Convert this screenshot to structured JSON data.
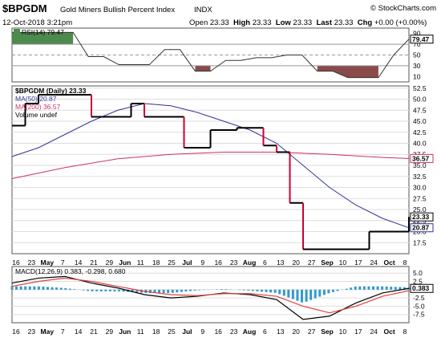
{
  "header": {
    "symbol": "$BPGDM",
    "name": "Gold Miners Bullish Percent Index",
    "exchange": "INDX",
    "brand": "© StockCharts.com",
    "date": "12-Oct-2018 3:21pm",
    "open_label": "Open",
    "open": "23.33",
    "high_label": "High",
    "high": "23.33",
    "low_label": "Low",
    "low": "23.33",
    "last_label": "Last",
    "last": "23.33",
    "chg_label": "Chg",
    "chg": "+0.00 (+0.00%)"
  },
  "colors": {
    "price": "#000000",
    "price_down": "#cc0033",
    "ma50": "#333399",
    "ma200": "#cc3366",
    "rsi_over": "#4d8a4d",
    "rsi_under": "#8b4a4a",
    "macd": "#000000",
    "signal": "#e04040",
    "hist": "#3399cc"
  },
  "chart_data": [
    {
      "type": "line",
      "panel": "rsi",
      "legend": "RSI(14) 79.47",
      "ylim": [
        0,
        100
      ],
      "yticks": [
        "90",
        "70",
        "50",
        "30",
        "10"
      ],
      "last_value_label": "79.47",
      "overbought": 70,
      "oversold": 30,
      "x": [
        0,
        1,
        2,
        3,
        4,
        5,
        6,
        7,
        8,
        9,
        10,
        11,
        12,
        13,
        14,
        15,
        16,
        17,
        18,
        19,
        20,
        21,
        22,
        23,
        24,
        25,
        26
      ],
      "values": [
        92,
        92,
        92,
        92,
        92,
        47,
        47,
        32,
        32,
        32,
        60,
        60,
        20,
        20,
        40,
        40,
        45,
        45,
        50,
        50,
        20,
        20,
        8,
        8,
        8,
        50,
        79.47
      ]
    },
    {
      "type": "line",
      "panel": "price",
      "legend_main": "$BPGDM (Daily) 23.33",
      "legend_ma50": "MA(50) 20.87",
      "legend_ma200": "MA(200) 36.57",
      "legend_vol": "Volume undef",
      "ylim": [
        15,
        53
      ],
      "yticks": [
        "52.5",
        "50.0",
        "47.5",
        "45.0",
        "42.5",
        "40.0",
        "37.5",
        "35.0",
        "32.5",
        "30.0",
        "27.5",
        "25.0",
        "22.5",
        "20.0",
        "17.5"
      ],
      "last_price_label": "23.33",
      "ma50_label": "20.87",
      "ma200_label": "36.57",
      "xlabels": [
        "16",
        "23",
        "May",
        "7",
        "14",
        "21",
        "29",
        "Jun",
        "11",
        "18",
        "25",
        "Jul",
        "9",
        "16",
        "23",
        "Aug",
        "6",
        "13",
        "20",
        "27",
        "Sep",
        "10",
        "17",
        "24",
        "Oct",
        "8"
      ],
      "series": [
        {
          "name": "$BPGDM",
          "x": [
            0,
            1,
            2,
            3,
            4,
            5,
            6,
            7,
            8,
            9,
            10,
            11,
            12,
            13,
            14,
            15,
            16,
            17,
            18,
            19,
            20,
            21,
            22,
            23,
            24,
            25,
            26,
            27,
            28,
            29,
            30
          ],
          "values": [
            44,
            49,
            51,
            51,
            51,
            51,
            46,
            46,
            46,
            49,
            46,
            46,
            46,
            39,
            39,
            43,
            43,
            43.5,
            43.5,
            39.5,
            38,
            26.5,
            16,
            16,
            16,
            16,
            16,
            20,
            20,
            20,
            23.33
          ]
        },
        {
          "name": "MA(50)",
          "x": [
            0,
            2,
            4,
            6,
            8,
            10,
            12,
            14,
            16,
            18,
            20,
            22,
            24,
            26,
            28,
            30
          ],
          "values": [
            37,
            39,
            42,
            45,
            47.5,
            49,
            48.5,
            47,
            45,
            43,
            40,
            35,
            30,
            26,
            23,
            20.87
          ]
        },
        {
          "name": "MA(200)",
          "x": [
            0,
            4,
            8,
            12,
            16,
            20,
            24,
            28,
            30
          ],
          "values": [
            32,
            34.5,
            36.5,
            37.5,
            38,
            38,
            37.5,
            36.8,
            36.57
          ]
        }
      ]
    },
    {
      "type": "line",
      "panel": "macd",
      "legend": "MACD(12,26,9) 0.383, -0.298, 0.680",
      "ylim": [
        -10,
        7
      ],
      "yticks": [
        "5.0",
        "2.5",
        "0.0",
        "-2.5",
        "-5.0",
        "-7.5"
      ],
      "last_value_label": "0.383",
      "xlabels": [
        "16",
        "23",
        "May",
        "7",
        "14",
        "21",
        "29",
        "Jun",
        "11",
        "18",
        "25",
        "Jul",
        "9",
        "16",
        "23",
        "Aug",
        "6",
        "13",
        "20",
        "27",
        "Sep",
        "10",
        "17",
        "24",
        "Oct",
        "8"
      ],
      "series": [
        {
          "name": "MACD",
          "x": [
            0,
            2,
            4,
            6,
            8,
            10,
            12,
            14,
            16,
            18,
            20,
            22,
            24,
            26,
            28,
            30
          ],
          "values": [
            2,
            3.5,
            4,
            2,
            0.5,
            -1.5,
            -2.5,
            -2,
            -1,
            -1.5,
            -3,
            -9,
            -8,
            -4,
            -1,
            0.383
          ]
        },
        {
          "name": "Signal",
          "x": [
            0,
            2,
            4,
            6,
            8,
            10,
            12,
            14,
            16,
            18,
            20,
            22,
            24,
            26,
            28,
            30
          ],
          "values": [
            1,
            2.5,
            3.5,
            2.5,
            1,
            -0.5,
            -1.5,
            -1.8,
            -1.2,
            -1.2,
            -2,
            -5,
            -7,
            -5,
            -2,
            -0.298
          ]
        },
        {
          "name": "Histogram",
          "x": [
            0,
            2,
            4,
            6,
            8,
            10,
            12,
            14,
            16,
            18,
            20,
            22,
            24,
            26,
            28,
            30
          ],
          "values": [
            1,
            1,
            0.5,
            -0.5,
            -0.5,
            -1,
            -1,
            -0.2,
            0.2,
            -0.3,
            -1,
            -4,
            -1,
            1,
            1,
            0.68
          ]
        }
      ]
    }
  ]
}
